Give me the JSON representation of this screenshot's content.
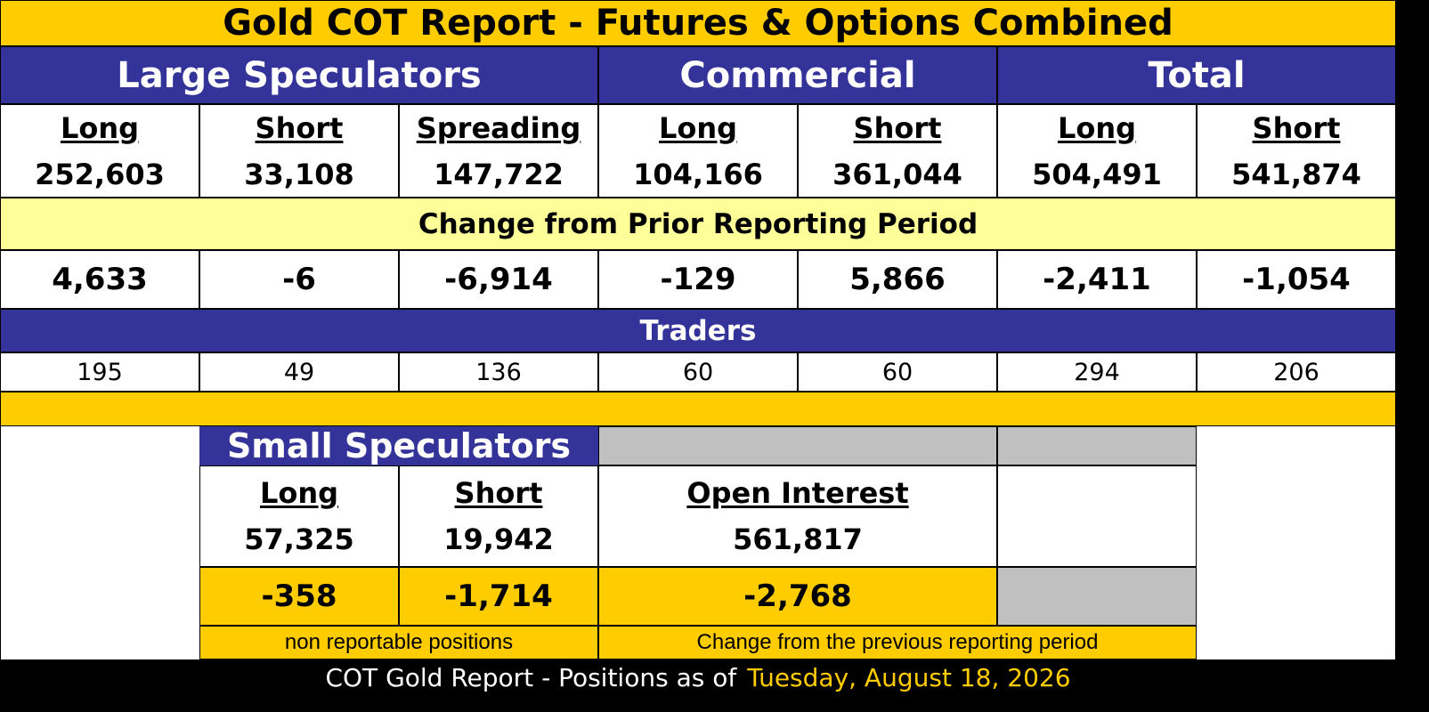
{
  "title": "Gold COT Report - Futures & Options Combined",
  "sections": {
    "large_speculators": "Large Speculators",
    "commercial": "Commercial",
    "total": "Total"
  },
  "columns": [
    {
      "label": "Long",
      "value": "252,603",
      "change": "4,633",
      "traders": "195"
    },
    {
      "label": "Short",
      "value": "33,108",
      "change": "-6",
      "traders": "49"
    },
    {
      "label": "Spreading",
      "value": "147,722",
      "change": "-6,914",
      "traders": "136"
    },
    {
      "label": "Long",
      "value": "104,166",
      "change": "-129",
      "traders": "60"
    },
    {
      "label": "Short",
      "value": "361,044",
      "change": "5,866",
      "traders": "60"
    },
    {
      "label": "Long",
      "value": "504,491",
      "change": "-2,411",
      "traders": "294"
    },
    {
      "label": "Short",
      "value": "541,874",
      "change": "-1,054",
      "traders": "206"
    }
  ],
  "change_title": "Change from Prior Reporting Period",
  "traders_title": "Traders",
  "small_speculators": {
    "title": "Small Speculators",
    "long_label": "Long",
    "long_value": "57,325",
    "long_change": "-358",
    "short_label": "Short",
    "short_value": "19,942",
    "short_change": "-1,714",
    "note": "non reportable positions"
  },
  "open_interest": {
    "label": "Open Interest",
    "value": "561,817",
    "change": "-2,768",
    "note": "Change from the previous reporting period"
  },
  "footer": {
    "prefix": "COT Gold Report - Positions as of",
    "date": "Tuesday, August 18, 2026"
  },
  "colors": {
    "gold": "#ffcc00",
    "blue": "#333399",
    "light_yellow": "#ffff99",
    "gray": "#c0c0c0"
  }
}
